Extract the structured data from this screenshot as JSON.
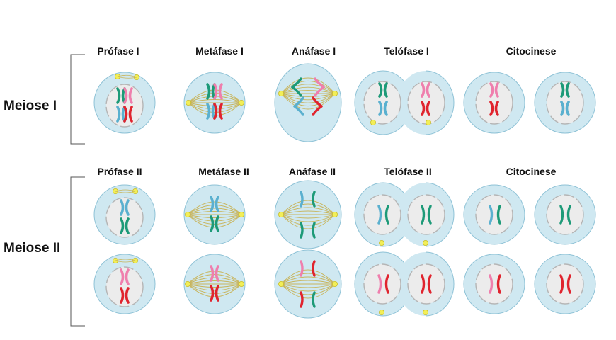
{
  "rows": [
    {
      "label": "Meiose I",
      "phases": [
        "Prófase I",
        "Metáfase I",
        "Anáfase I",
        "Telófase I",
        "Citocinese"
      ]
    },
    {
      "label": "Meiose II",
      "phases": [
        "Prófase II",
        "Metáfase II",
        "Anáfase II",
        "Telófase II",
        "Citocinese"
      ]
    }
  ],
  "colors": {
    "cytoplasm": "#cfe8f1",
    "cell_border": "#8ec2d6",
    "nucleus": "#ececec",
    "nuclear_envelope": "#b5b5b5",
    "spindle": "#c8b45a",
    "centriole": "#f2ee58",
    "chromosome_green": "#1d9a78",
    "chromosome_pink": "#ef7fad",
    "chromosome_red": "#e0242e",
    "chromosome_blue": "#5ab0cf",
    "bracket": "#555555"
  }
}
